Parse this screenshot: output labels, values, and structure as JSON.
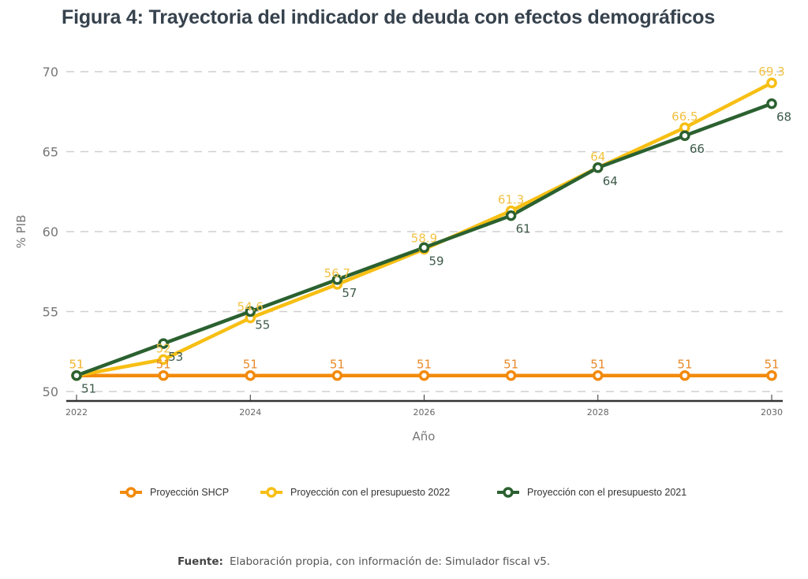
{
  "title": "Figura 4: Trayectoria del indicador de deuda con efectos demográficos",
  "source": {
    "label": "Fuente:",
    "text": "Elaboración propia, con información de: Simulador fiscal v5."
  },
  "chart_data": {
    "type": "line",
    "title": "Figura 4: Trayectoria del indicador de deuda con efectos demográficos",
    "xlabel": "Año",
    "ylabel": "% PIB",
    "x": [
      2022,
      2023,
      2024,
      2025,
      2026,
      2027,
      2028,
      2029,
      2030
    ],
    "xticks": [
      2022,
      2024,
      2026,
      2028,
      2030
    ],
    "yticks": [
      50,
      55,
      60,
      65,
      70
    ],
    "xlim": [
      2022,
      2030
    ],
    "ylim": [
      50,
      70
    ],
    "grid": "horizontal-dashed",
    "legend_position": "bottom",
    "series": [
      {
        "name": "Proyección SHCP",
        "color": "#f28a0c",
        "label_color": "#e88a2a",
        "label_pos": "above",
        "values": [
          51,
          51,
          51,
          51,
          51,
          51,
          51,
          51,
          51
        ],
        "labels": [
          "51",
          "51",
          "51",
          "51",
          "51",
          "51",
          "51",
          "51",
          "51"
        ]
      },
      {
        "name": "Proyección con el presupuesto 2022",
        "color": "#f7bf14",
        "label_color": "#f2c241",
        "label_pos": "above",
        "values": [
          51,
          52,
          54.6,
          56.7,
          58.9,
          61.3,
          64,
          66.5,
          69.3
        ],
        "labels": [
          "51",
          "52",
          "54.6",
          "56.7",
          "58.9",
          "61.3",
          "64",
          "66.5",
          "69.3"
        ]
      },
      {
        "name": "Proyección con el presupuesto 2021",
        "color": "#2b6130",
        "label_color": "#3d5a4a",
        "label_pos": "below-right",
        "values": [
          51,
          53,
          55,
          57,
          59,
          61,
          64,
          66,
          68
        ],
        "labels": [
          "51",
          "53",
          "55",
          "57",
          "59",
          "61",
          "64",
          "66",
          "68"
        ]
      }
    ]
  }
}
